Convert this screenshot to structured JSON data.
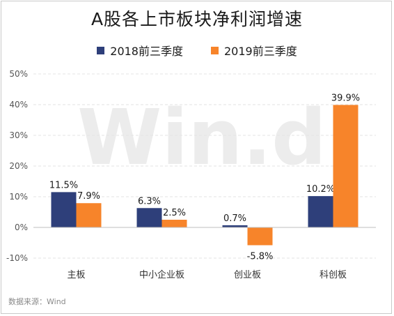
{
  "title": "A股各上市板块净利润增速",
  "source": "数据来源：Wind",
  "watermark": "Win.d",
  "legend": [
    {
      "label": "2018前三季度",
      "color": "#2e3f7a"
    },
    {
      "label": "2019前三季度",
      "color": "#f7842a"
    }
  ],
  "chart_data": {
    "type": "bar",
    "title": "A股各上市板块净利润增速",
    "categories": [
      "主板",
      "中小企业板",
      "创业板",
      "科创板"
    ],
    "series": [
      {
        "name": "2018前三季度",
        "values": [
          11.5,
          6.3,
          0.7,
          10.2
        ],
        "labels": [
          "11.5%",
          "6.3%",
          "0.7%",
          "10.2%"
        ],
        "color": "#2e3f7a"
      },
      {
        "name": "2019前三季度",
        "values": [
          7.9,
          2.5,
          -5.8,
          39.9
        ],
        "labels": [
          "7.9%",
          "2.5%",
          "-5.8%",
          "39.9%"
        ],
        "color": "#f7842a"
      }
    ],
    "yticks": [
      -10,
      0,
      10,
      20,
      30,
      40,
      50
    ],
    "ytick_labels": [
      "-10%",
      "0%",
      "10%",
      "20%",
      "30%",
      "40%",
      "50%"
    ],
    "ylim": [
      -10,
      50
    ],
    "grid": true,
    "legend_position": "top"
  }
}
